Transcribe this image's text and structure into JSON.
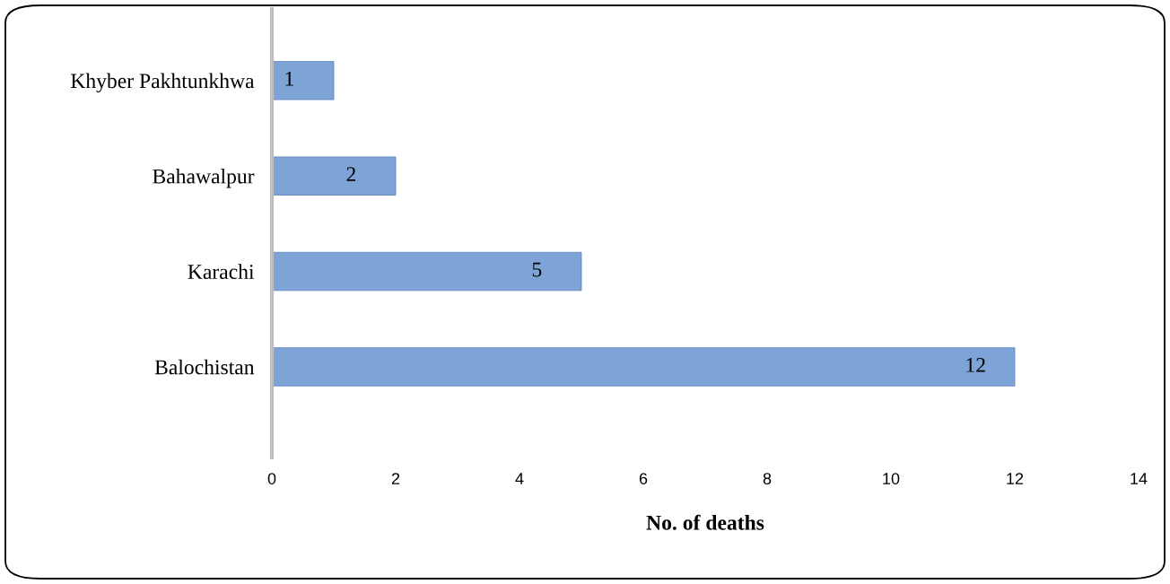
{
  "chart_data": {
    "type": "bar",
    "orientation": "horizontal",
    "categories": [
      "Khyber Pakhtunkhwa",
      "Bahawalpur",
      "Karachi",
      "Balochistan"
    ],
    "values": [
      1,
      2,
      5,
      12
    ],
    "color": "#7ea3d6",
    "xlim": [
      0,
      14
    ],
    "xticks": [
      0,
      2,
      4,
      6,
      8,
      10,
      12,
      14
    ],
    "xlabel": "No. of deaths",
    "data_labels": true,
    "grid": false,
    "legend": false
  }
}
